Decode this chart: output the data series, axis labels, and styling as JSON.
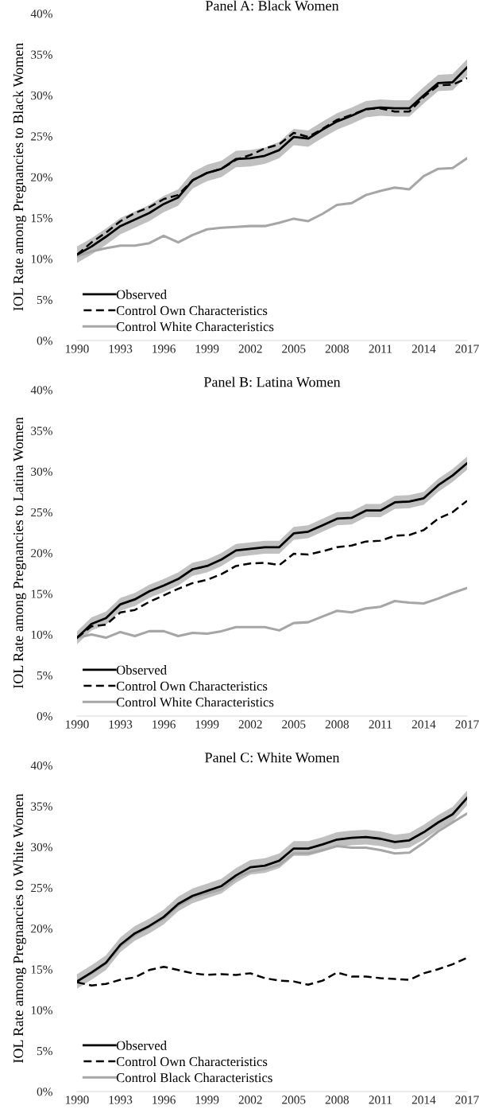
{
  "chart_data": [
    {
      "type": "line",
      "title": "Panel A: Black Women",
      "ylabel": "IOL Rate among Pregnancies to Black Women",
      "x": [
        1990,
        1991,
        1992,
        1993,
        1994,
        1995,
        1996,
        1997,
        1998,
        1999,
        2000,
        2001,
        2002,
        2003,
        2004,
        2005,
        2006,
        2007,
        2008,
        2009,
        2010,
        2011,
        2012,
        2013,
        2014,
        2015,
        2016,
        2017
      ],
      "xlim": [
        1990,
        2017
      ],
      "xticks": [
        1990,
        1993,
        1996,
        1999,
        2002,
        2005,
        2008,
        2011,
        2014,
        2017
      ],
      "ylim": [
        0,
        40
      ],
      "yticks": [
        {
          "value": 0,
          "label": "0%"
        },
        {
          "value": 5,
          "label": "5%"
        },
        {
          "value": 10,
          "label": "10%"
        },
        {
          "value": 15,
          "label": "15%"
        },
        {
          "value": 20,
          "label": "20%"
        },
        {
          "value": 25,
          "label": "25%"
        },
        {
          "value": 30,
          "label": "30%"
        },
        {
          "value": 35,
          "label": "35%"
        },
        {
          "value": 40,
          "label": "40%"
        }
      ],
      "grid": false,
      "legend": "bottom left",
      "marker": "none",
      "series": [
        {
          "name": "Observed",
          "color": "#000000",
          "line_style": "solid",
          "values": [
            10.5,
            11.5,
            12.7,
            14.0,
            14.8,
            15.6,
            16.7,
            17.5,
            19.6,
            20.5,
            21.0,
            22.2,
            22.3,
            22.6,
            23.3,
            24.9,
            24.7,
            25.8,
            26.8,
            27.5,
            28.3,
            28.5,
            28.4,
            28.4,
            30.0,
            31.5,
            31.6,
            33.4
          ],
          "lower": [
            9.5,
            10.5,
            11.7,
            13.0,
            13.8,
            14.6,
            15.7,
            16.5,
            18.6,
            19.5,
            20.0,
            21.2,
            21.3,
            21.6,
            22.3,
            23.9,
            23.7,
            24.8,
            25.8,
            26.5,
            27.3,
            27.5,
            27.4,
            27.4,
            29.0,
            30.5,
            30.6,
            32.4
          ],
          "upper": [
            11.5,
            12.5,
            13.7,
            15.0,
            15.8,
            16.6,
            17.7,
            18.5,
            20.6,
            21.5,
            22.0,
            23.2,
            23.3,
            23.6,
            24.3,
            25.9,
            25.7,
            26.8,
            27.8,
            28.5,
            29.3,
            29.5,
            29.4,
            29.4,
            31.0,
            32.5,
            32.6,
            34.4
          ]
        },
        {
          "name": "Control Own Characteristics",
          "color": "#000000",
          "line_style": "dashed",
          "values": [
            10.5,
            12.0,
            13.2,
            14.6,
            15.6,
            16.3,
            17.3,
            17.8,
            19.6,
            20.5,
            21.0,
            22.1,
            22.7,
            23.5,
            24.0,
            25.4,
            24.9,
            25.9,
            27.0,
            27.6,
            28.3,
            28.4,
            28.0,
            28.0,
            29.8,
            31.2,
            31.3,
            32.1
          ]
        },
        {
          "name": "Control White Characteristics",
          "color": "#a6a6a6",
          "line_style": "solid",
          "values": [
            10.3,
            10.9,
            11.3,
            11.6,
            11.6,
            11.9,
            12.8,
            12.0,
            12.9,
            13.6,
            13.8,
            13.9,
            14.0,
            14.0,
            14.4,
            14.9,
            14.6,
            15.5,
            16.6,
            16.8,
            17.8,
            18.3,
            18.7,
            18.5,
            20.1,
            21.0,
            21.1,
            22.3
          ]
        }
      ]
    },
    {
      "type": "line",
      "title": "Panel B: Latina Women",
      "ylabel": "IOL Rate among Pregnancies to Latina Women",
      "x": [
        1990,
        1991,
        1992,
        1993,
        1994,
        1995,
        1996,
        1997,
        1998,
        1999,
        2000,
        2001,
        2002,
        2003,
        2004,
        2005,
        2006,
        2007,
        2008,
        2009,
        2010,
        2011,
        2012,
        2013,
        2014,
        2015,
        2016,
        2017
      ],
      "xlim": [
        1990,
        2017
      ],
      "xticks": [
        1990,
        1993,
        1996,
        1999,
        2002,
        2005,
        2008,
        2011,
        2014,
        2017
      ],
      "ylim": [
        0,
        40
      ],
      "yticks": [
        {
          "value": 0,
          "label": "0%"
        },
        {
          "value": 5,
          "label": "5%"
        },
        {
          "value": 10,
          "label": "10%"
        },
        {
          "value": 15,
          "label": "15%"
        },
        {
          "value": 20,
          "label": "20%"
        },
        {
          "value": 25,
          "label": "25%"
        },
        {
          "value": 30,
          "label": "30%"
        },
        {
          "value": 35,
          "label": "35%"
        },
        {
          "value": 40,
          "label": "40%"
        }
      ],
      "grid": false,
      "legend": "bottom left",
      "marker": "none",
      "series": [
        {
          "name": "Observed",
          "color": "#000000",
          "line_style": "solid",
          "values": [
            9.6,
            11.3,
            12.0,
            13.7,
            14.3,
            15.3,
            16.0,
            16.8,
            18.0,
            18.4,
            19.2,
            20.3,
            20.5,
            20.7,
            20.7,
            22.4,
            22.6,
            23.4,
            24.2,
            24.3,
            25.2,
            25.2,
            26.2,
            26.3,
            26.7,
            28.3,
            29.5,
            31.0
          ],
          "lower": [
            8.8,
            10.5,
            11.2,
            12.9,
            13.5,
            14.5,
            15.2,
            16.0,
            17.2,
            17.6,
            18.4,
            19.5,
            19.7,
            19.9,
            19.9,
            21.6,
            21.8,
            22.6,
            23.4,
            23.5,
            24.4,
            24.4,
            25.4,
            25.5,
            25.9,
            27.5,
            28.7,
            30.2
          ],
          "upper": [
            10.4,
            12.1,
            12.8,
            14.5,
            15.1,
            16.1,
            16.8,
            17.6,
            18.8,
            19.2,
            20.0,
            21.1,
            21.3,
            21.5,
            21.5,
            23.2,
            23.4,
            24.2,
            25.0,
            25.1,
            26.0,
            26.0,
            27.0,
            27.1,
            27.5,
            29.1,
            30.3,
            31.8
          ]
        },
        {
          "name": "Control Own Characteristics",
          "color": "#000000",
          "line_style": "dashed",
          "values": [
            9.6,
            11.0,
            11.2,
            12.7,
            13.0,
            14.0,
            14.8,
            15.6,
            16.3,
            16.7,
            17.4,
            18.4,
            18.7,
            18.8,
            18.5,
            19.9,
            19.8,
            20.2,
            20.7,
            20.9,
            21.4,
            21.5,
            22.1,
            22.2,
            22.8,
            24.2,
            25.0,
            26.4
          ]
        },
        {
          "name": "Control White Characteristics",
          "color": "#a6a6a6",
          "line_style": "solid",
          "values": [
            9.6,
            10.0,
            9.6,
            10.3,
            9.8,
            10.4,
            10.4,
            9.8,
            10.2,
            10.1,
            10.4,
            10.9,
            10.9,
            10.9,
            10.5,
            11.4,
            11.5,
            12.2,
            12.9,
            12.7,
            13.2,
            13.4,
            14.1,
            13.9,
            13.8,
            14.4,
            15.1,
            15.7
          ]
        }
      ]
    },
    {
      "type": "line",
      "title": "Panel C: White Women",
      "ylabel": "IOL Rate among Pregnancies to White Women",
      "x": [
        1990,
        1991,
        1992,
        1993,
        1994,
        1995,
        1996,
        1997,
        1998,
        1999,
        2000,
        2001,
        2002,
        2003,
        2004,
        2005,
        2006,
        2007,
        2008,
        2009,
        2010,
        2011,
        2012,
        2013,
        2014,
        2015,
        2016,
        2017
      ],
      "xlim": [
        1990,
        2017
      ],
      "xticks": [
        1990,
        1993,
        1996,
        1999,
        2002,
        2005,
        2008,
        2011,
        2014,
        2017
      ],
      "ylim": [
        0,
        40
      ],
      "yticks": [
        {
          "value": 0,
          "label": "0%"
        },
        {
          "value": 5,
          "label": "5%"
        },
        {
          "value": 10,
          "label": "10%"
        },
        {
          "value": 15,
          "label": "15%"
        },
        {
          "value": 20,
          "label": "20%"
        },
        {
          "value": 25,
          "label": "25%"
        },
        {
          "value": 30,
          "label": "30%"
        },
        {
          "value": 35,
          "label": "35%"
        },
        {
          "value": 40,
          "label": "40%"
        }
      ],
      "grid": false,
      "legend": "bottom left",
      "marker": "none",
      "series": [
        {
          "name": "Observed",
          "color": "#000000",
          "line_style": "solid",
          "values": [
            13.5,
            14.6,
            15.8,
            18.0,
            19.4,
            20.3,
            21.4,
            23.0,
            24.0,
            24.6,
            25.2,
            26.5,
            27.5,
            27.7,
            28.3,
            29.8,
            29.8,
            30.3,
            30.9,
            31.1,
            31.2,
            31.0,
            30.6,
            30.8,
            31.8,
            33.0,
            34.0,
            36.0
          ],
          "lower": [
            12.6,
            13.7,
            14.9,
            17.1,
            18.5,
            19.4,
            20.5,
            22.1,
            23.1,
            23.7,
            24.3,
            25.6,
            26.6,
            26.8,
            27.4,
            28.9,
            28.9,
            29.4,
            30.0,
            30.2,
            30.3,
            30.1,
            29.7,
            29.9,
            30.9,
            32.1,
            33.1,
            35.1
          ],
          "upper": [
            14.4,
            15.5,
            16.7,
            18.9,
            20.3,
            21.2,
            22.3,
            23.9,
            24.9,
            25.5,
            26.1,
            27.4,
            28.4,
            28.6,
            29.2,
            30.7,
            30.7,
            31.2,
            31.8,
            32.0,
            32.1,
            31.9,
            31.5,
            31.7,
            32.7,
            33.9,
            34.9,
            36.9
          ]
        },
        {
          "name": "Control Own Characteristics",
          "color": "#000000",
          "line_style": "dashed",
          "values": [
            13.4,
            13.0,
            13.2,
            13.7,
            14.0,
            14.9,
            15.3,
            14.9,
            14.5,
            14.3,
            14.4,
            14.3,
            14.5,
            13.9,
            13.6,
            13.5,
            13.1,
            13.6,
            14.6,
            14.1,
            14.1,
            13.9,
            13.8,
            13.7,
            14.5,
            15.0,
            15.6,
            16.4
          ]
        },
        {
          "name": "Control Black Characteristics",
          "color": "#a6a6a6",
          "line_style": "solid",
          "values": [
            13.5,
            14.5,
            15.7,
            17.8,
            19.2,
            20.2,
            21.2,
            22.8,
            23.8,
            24.3,
            24.8,
            26.2,
            27.0,
            27.3,
            27.8,
            29.2,
            29.2,
            29.6,
            30.1,
            29.9,
            29.9,
            29.6,
            29.2,
            29.3,
            30.5,
            31.9,
            33.0,
            34.1
          ]
        }
      ]
    }
  ]
}
